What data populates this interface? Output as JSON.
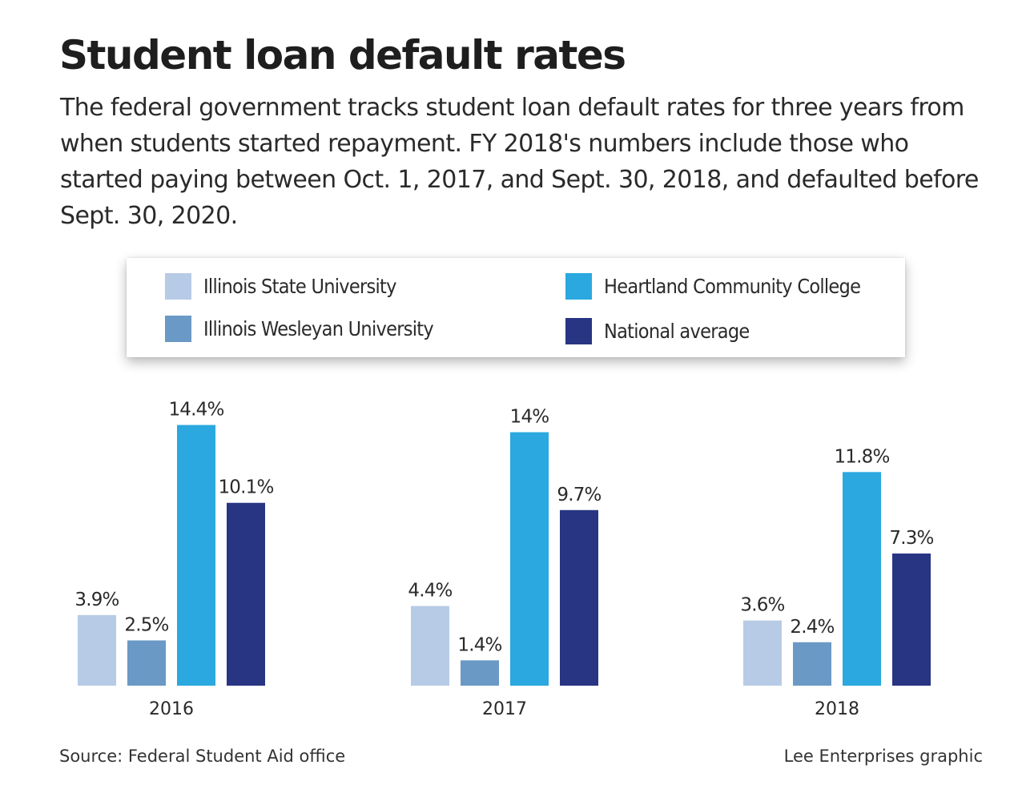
{
  "title": "Student loan default rates",
  "subtitle": "The federal government tracks student loan default rates for three years from when students started repayment. FY 2018's numbers include those who started paying between Oct. 1, 2017, and Sept. 30, 2018, and defaulted before Sept. 30, 2020.",
  "legend": [
    {
      "label": "Illinois State University",
      "color": "#b7cbe6"
    },
    {
      "label": "Heartland Community College",
      "color": "#2aa8df"
    },
    {
      "label": "Illinois Wesleyan University",
      "color": "#6a99c6"
    },
    {
      "label": "National average",
      "color": "#283583"
    }
  ],
  "footer": {
    "source": "Source:  Federal Student Aid office",
    "credit": "Lee Enterprises graphic"
  },
  "chart_data": {
    "type": "bar",
    "categories": [
      "2016",
      "2017",
      "2018"
    ],
    "series": [
      {
        "name": "Illinois State University",
        "color": "#b7cbe6",
        "values": [
          3.9,
          4.4,
          3.6
        ],
        "labels": [
          "3.9%",
          "4.4%",
          "3.6%"
        ]
      },
      {
        "name": "Illinois Wesleyan University",
        "color": "#6a99c6",
        "values": [
          2.5,
          1.4,
          2.4
        ],
        "labels": [
          "2.5%",
          "1.4%",
          "2.4%"
        ]
      },
      {
        "name": "Heartland Community College",
        "color": "#2aa8df",
        "values": [
          14.4,
          14,
          11.8
        ],
        "labels": [
          "14.4%",
          "14%",
          "11.8%"
        ]
      },
      {
        "name": "National average",
        "color": "#283583",
        "values": [
          10.1,
          9.7,
          7.3
        ],
        "labels": [
          "10.1%",
          "9.7%",
          "7.3%"
        ]
      }
    ],
    "unit": "%",
    "grid": false,
    "legend_position": "top"
  }
}
